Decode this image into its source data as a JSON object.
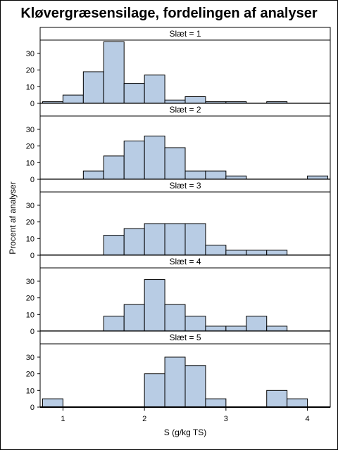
{
  "chart_data": {
    "type": "bar",
    "title": "Kløvergræsensilage, fordelingen af analyser",
    "xlabel": "S (g/kg TS)",
    "ylabel": "Procent af analyser",
    "xlim": [
      0.72,
      4.28
    ],
    "ylim": [
      0,
      38
    ],
    "bin_width": 0.25,
    "x_ticks": [
      1,
      2,
      3,
      4
    ],
    "y_ticks": [
      0,
      10,
      20,
      30
    ],
    "bar_fill": "#b8cce4",
    "bar_stroke": "#000000",
    "panels": [
      {
        "label": "Slæt = 1",
        "bins": [
          {
            "x0": 0.75,
            "value": 1
          },
          {
            "x0": 1.0,
            "value": 5
          },
          {
            "x0": 1.25,
            "value": 19
          },
          {
            "x0": 1.5,
            "value": 37
          },
          {
            "x0": 1.75,
            "value": 12
          },
          {
            "x0": 2.0,
            "value": 17
          },
          {
            "x0": 2.25,
            "value": 2
          },
          {
            "x0": 2.5,
            "value": 4
          },
          {
            "x0": 2.75,
            "value": 1
          },
          {
            "x0": 3.0,
            "value": 1
          },
          {
            "x0": 3.5,
            "value": 1
          }
        ]
      },
      {
        "label": "Slæt = 2",
        "bins": [
          {
            "x0": 1.25,
            "value": 5
          },
          {
            "x0": 1.5,
            "value": 14
          },
          {
            "x0": 1.75,
            "value": 23
          },
          {
            "x0": 2.0,
            "value": 26
          },
          {
            "x0": 2.25,
            "value": 19
          },
          {
            "x0": 2.5,
            "value": 5
          },
          {
            "x0": 2.75,
            "value": 5
          },
          {
            "x0": 3.0,
            "value": 2
          },
          {
            "x0": 4.0,
            "value": 2
          }
        ]
      },
      {
        "label": "Slæt = 3",
        "bins": [
          {
            "x0": 1.5,
            "value": 12
          },
          {
            "x0": 1.75,
            "value": 16
          },
          {
            "x0": 2.0,
            "value": 19
          },
          {
            "x0": 2.25,
            "value": 19
          },
          {
            "x0": 2.5,
            "value": 19
          },
          {
            "x0": 2.75,
            "value": 6
          },
          {
            "x0": 3.0,
            "value": 3
          },
          {
            "x0": 3.25,
            "value": 3
          },
          {
            "x0": 3.5,
            "value": 3
          }
        ]
      },
      {
        "label": "Slæt = 4",
        "bins": [
          {
            "x0": 1.5,
            "value": 9
          },
          {
            "x0": 1.75,
            "value": 16
          },
          {
            "x0": 2.0,
            "value": 31
          },
          {
            "x0": 2.25,
            "value": 16
          },
          {
            "x0": 2.5,
            "value": 9
          },
          {
            "x0": 2.75,
            "value": 3
          },
          {
            "x0": 3.0,
            "value": 3
          },
          {
            "x0": 3.25,
            "value": 9
          },
          {
            "x0": 3.5,
            "value": 3
          }
        ]
      },
      {
        "label": "Slæt = 5",
        "bins": [
          {
            "x0": 0.75,
            "value": 5
          },
          {
            "x0": 2.0,
            "value": 20
          },
          {
            "x0": 2.25,
            "value": 30
          },
          {
            "x0": 2.5,
            "value": 25
          },
          {
            "x0": 2.75,
            "value": 5
          },
          {
            "x0": 3.5,
            "value": 10
          },
          {
            "x0": 3.75,
            "value": 5
          }
        ]
      }
    ]
  }
}
